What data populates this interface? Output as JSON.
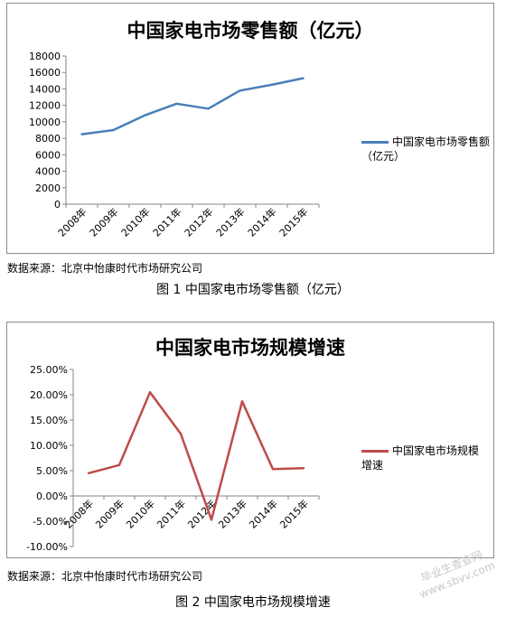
{
  "chart_data": [
    {
      "type": "line",
      "title": "中国家电市场零售额（亿元）",
      "categories": [
        "2008年",
        "2009年",
        "2010年",
        "2011年",
        "2012年",
        "2013年",
        "2014年",
        "2015年"
      ],
      "series": [
        {
          "name": "中国家电市场零售额（亿元）",
          "values": [
            8500,
            9000,
            10800,
            12200,
            11600,
            13800,
            14500,
            15300
          ],
          "color": "#4a7ebb"
        }
      ],
      "ylim": [
        0,
        18000
      ],
      "yticks": [
        "0",
        "2000",
        "4000",
        "6000",
        "8000",
        "10000",
        "12000",
        "14000",
        "16000",
        "18000"
      ],
      "grid": false,
      "legend": "right"
    },
    {
      "type": "line",
      "title": "中国家电市场规模增速",
      "categories": [
        "2008年",
        "2009年",
        "2010年",
        "2011年",
        "2012年",
        "2013年",
        "2014年",
        "2015年"
      ],
      "series": [
        {
          "name": "中国家电市场规模增速",
          "values": [
            0.045,
            0.061,
            0.205,
            0.123,
            -0.047,
            0.187,
            0.053,
            0.055
          ],
          "color": "#be4b48"
        }
      ],
      "ylim": [
        -0.1,
        0.25
      ],
      "yticks": [
        "-10.00%",
        "-5.00%",
        "0.00%",
        "5.00%",
        "10.00%",
        "15.00%",
        "20.00%",
        "25.00%"
      ],
      "grid": false,
      "legend": "right"
    }
  ],
  "source1": "数据来源：北京中怡康时代市场研究公司",
  "caption1": "图 1 中国家电市场零售额（亿元）",
  "source2": "数据来源：北京中怡康时代市场研究公司",
  "caption2": "图 2  中国家电市场规模增速",
  "watermark": "毕业生查查网 www.sbvv.com"
}
